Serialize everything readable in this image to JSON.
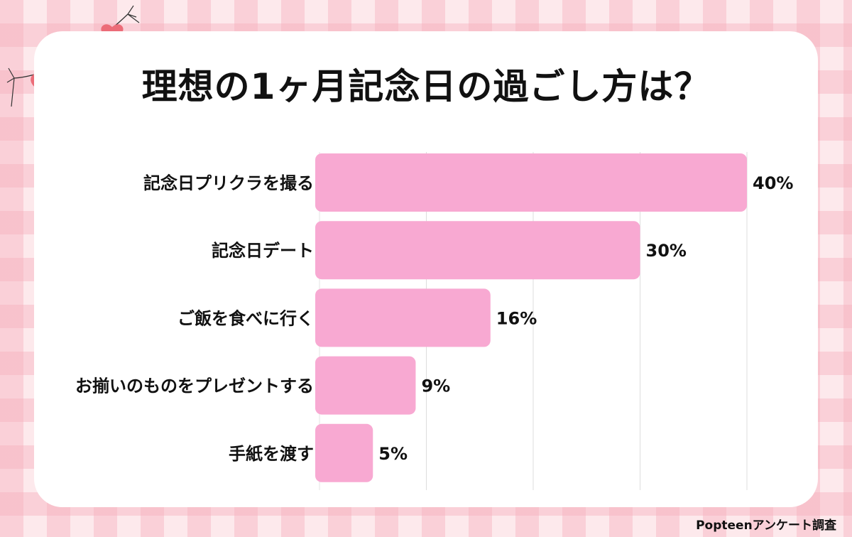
{
  "title": "理想の1ヶ月記念日の過ごし方は？",
  "credit": "Popteenアンケート調査",
  "colors": {
    "bar": "#f8a9d2",
    "grid": "#dddddd",
    "text": "#111111"
  },
  "chart_data": {
    "type": "bar",
    "orientation": "horizontal",
    "categories": [
      "記念日プリクラを撮る",
      "記念日デート",
      "ご飯を食べに行く",
      "お揃いのものをプレゼントする",
      "手紙を渡す"
    ],
    "values": [
      40,
      30,
      16,
      9,
      5
    ],
    "value_labels": [
      "40%",
      "30%",
      "16%",
      "9%",
      "5%"
    ],
    "xlim": [
      0,
      40
    ],
    "grid": true
  }
}
